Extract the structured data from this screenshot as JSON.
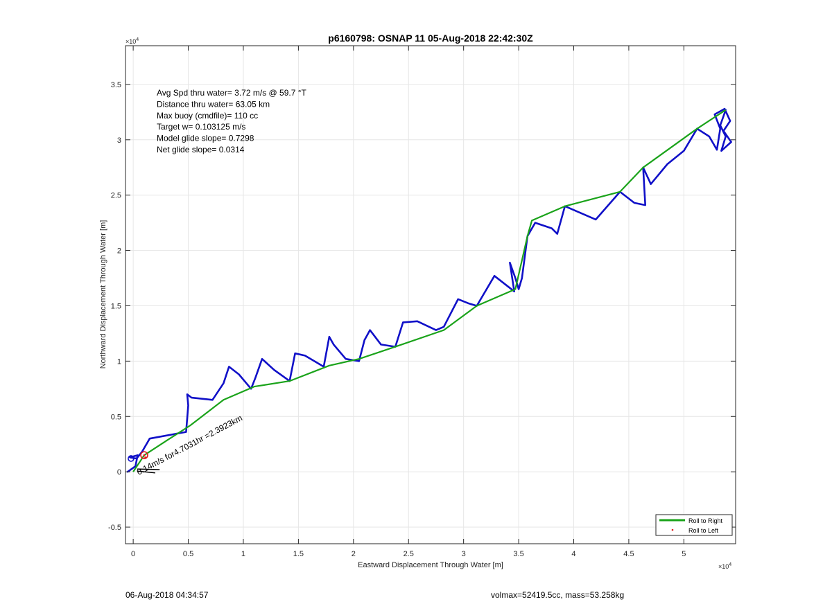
{
  "footer": {
    "left": "06-Aug-2018 04:34:57",
    "right": "volmax=52419.5cc, mass=53.258kg"
  },
  "colors": {
    "track": "#1010c8",
    "roll_right": "#1aa31a",
    "roll_left": "#e01a1a",
    "axes": "#262626",
    "grid": "#e6e6e6",
    "annotation": "#000000"
  },
  "chart_data": {
    "type": "line",
    "title": "p6160798: OSNAP 11 05-Aug-2018 22:42:30Z",
    "xlabel": "Eastward Displacement Through Water [m]",
    "ylabel": "Northward Displacement Through Water [m]",
    "x_exponent_label": "×10",
    "y_exponent_label": "×10",
    "exponent_power": "4",
    "xlim": [
      -700,
      54700
    ],
    "ylim": [
      -6500,
      38500
    ],
    "xticks": [
      0,
      5000,
      10000,
      15000,
      20000,
      25000,
      30000,
      35000,
      40000,
      45000,
      50000
    ],
    "xtick_labels": [
      "0",
      "0.5",
      "1",
      "1.5",
      "2",
      "2.5",
      "3",
      "3.5",
      "4",
      "4.5",
      "5"
    ],
    "yticks": [
      -5000,
      0,
      5000,
      10000,
      15000,
      20000,
      25000,
      30000,
      35000
    ],
    "ytick_labels": [
      "-0.5",
      "0",
      "0.5",
      "1",
      "1.5",
      "2",
      "2.5",
      "3",
      "3.5"
    ],
    "grid": true,
    "legend_position": "bottom-right",
    "info_text": [
      "Avg Spd thru water=  3.72 m/s @  59.7 °T",
      "Distance thru water= 63.05 km",
      "Max buoy (cmdfile)= 110 cc",
      "Target w= 0.103125 m/s",
      "Model glide slope= 0.7298",
      "Net glide slope= 0.0314"
    ],
    "vector_annotation": "0.14m/s for4.7031hr =2.3923km",
    "series": [
      {
        "name": "Roll to Right",
        "style": "line",
        "x": [
          0,
          1000,
          3000,
          5200,
          8200,
          11000,
          14200,
          17800,
          20500,
          23800,
          28200,
          31200,
          34700,
          35800,
          36200,
          39200,
          44200,
          46300,
          51200,
          53800
        ],
        "y": [
          0,
          1500,
          2800,
          4200,
          6500,
          7700,
          8200,
          9600,
          10200,
          11300,
          12800,
          15000,
          16500,
          21300,
          22700,
          24000,
          25300,
          27500,
          31000,
          32700
        ]
      },
      {
        "name": "Roll to Left",
        "style": "markers",
        "x": [
          1000,
          1100
        ],
        "y": [
          1500,
          1300
        ]
      },
      {
        "name": "",
        "style": "track",
        "x": [
          -500,
          200,
          400,
          -300,
          300,
          800,
          1500,
          4800,
          5000,
          4900,
          5300,
          7200,
          8200,
          8700,
          9600,
          10700,
          11100,
          11700,
          12800,
          14200,
          14700,
          15600,
          17300,
          17800,
          18200,
          19300,
          20500,
          21000,
          21500,
          22500,
          23800,
          24500,
          25800,
          27500,
          28200,
          29500,
          30500,
          31200,
          32800,
          34600,
          34200,
          34700,
          35000,
          35300,
          35800,
          36500,
          38000,
          38500,
          39200,
          42000,
          44200,
          45500,
          46500,
          46300,
          47000,
          48500,
          50000,
          51200,
          52300,
          53000,
          53300,
          52800,
          53700,
          54200,
          53600,
          54300,
          53400,
          53800,
          53300,
          53800
        ],
        "y": [
          0,
          500,
          1500,
          1300,
          1200,
          1800,
          3000,
          3600,
          6000,
          7000,
          6700,
          6500,
          8000,
          9500,
          8800,
          7500,
          8500,
          10200,
          9200,
          8200,
          10700,
          10500,
          9500,
          12200,
          11500,
          10200,
          10000,
          11900,
          12800,
          11500,
          11300,
          13500,
          13600,
          12800,
          13100,
          15600,
          15200,
          15000,
          17700,
          16300,
          18900,
          17500,
          16500,
          17500,
          21300,
          22500,
          22000,
          21500,
          24000,
          22800,
          25300,
          24300,
          24100,
          27500,
          26000,
          27800,
          29000,
          31000,
          30300,
          29100,
          31000,
          32300,
          32800,
          31700,
          30800,
          29800,
          29000,
          30300,
          31300,
          32700
        ]
      }
    ]
  }
}
